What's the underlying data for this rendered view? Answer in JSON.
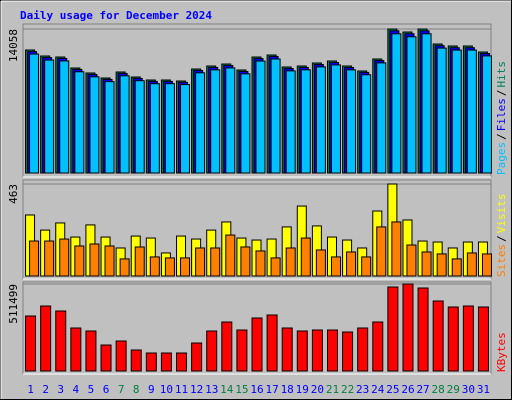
{
  "title": "Daily usage for December 2024",
  "legend_separator": "/",
  "chart_data": [
    {
      "type": "bar",
      "ylim": [
        0,
        14058
      ],
      "yticks": [
        14058
      ],
      "series": [
        {
          "name": "Hits",
          "color": "#00805c",
          "values": [
            12008,
            11422,
            11324,
            10250,
            9763,
            9274,
            9860,
            9372,
            9079,
            9079,
            8981,
            10153,
            10446,
            10641,
            10055,
            11324,
            11520,
            10348,
            10446,
            10739,
            10934,
            10446,
            9958,
            11129,
            14058,
            13765,
            14058,
            12594,
            12398,
            12398,
            11812
          ]
        },
        {
          "name": "Files",
          "color": "#0000ff",
          "values": [
            11850,
            11270,
            11180,
            10110,
            9620,
            9140,
            9720,
            9230,
            8940,
            8940,
            8850,
            10010,
            10300,
            10490,
            9910,
            11170,
            11370,
            10200,
            10300,
            10590,
            10780,
            10300,
            9820,
            10980,
            13880,
            13590,
            13880,
            12430,
            12230,
            12230,
            11660
          ]
        },
        {
          "name": "Pages",
          "color": "#00c0ff",
          "values": [
            11610,
            11030,
            10940,
            9880,
            9390,
            8920,
            9490,
            9010,
            8720,
            8720,
            8630,
            9780,
            10070,
            10260,
            9680,
            10930,
            11130,
            9970,
            10070,
            10360,
            10550,
            10070,
            9590,
            10750,
            13590,
            13300,
            13590,
            12190,
            12000,
            12000,
            11430
          ]
        }
      ]
    },
    {
      "type": "bar",
      "ylim": [
        0,
        463
      ],
      "yticks": [
        463
      ],
      "series": [
        {
          "name": "Visits",
          "color": "#ffff00",
          "values": [
            307,
            231,
            267,
            196,
            257,
            196,
            141,
            201,
            191,
            116,
            201,
            186,
            231,
            272,
            191,
            181,
            186,
            247,
            352,
            252,
            196,
            181,
            141,
            327,
            463,
            282,
            176,
            171,
            141,
            171,
            171
          ]
        },
        {
          "name": "Sites",
          "color": "#ff8000",
          "values": [
            176,
            176,
            186,
            151,
            161,
            151,
            86,
            146,
            96,
            91,
            91,
            141,
            141,
            206,
            146,
            126,
            91,
            141,
            191,
            131,
            96,
            121,
            96,
            247,
            272,
            156,
            121,
            111,
            86,
            116,
            111
          ]
        }
      ]
    },
    {
      "type": "bar",
      "ylim": [
        0,
        511499
      ],
      "yticks": [
        511499
      ],
      "categories": [
        "1",
        "2",
        "3",
        "4",
        "5",
        "6",
        "7",
        "8",
        "9",
        "10",
        "11",
        "12",
        "13",
        "14",
        "15",
        "16",
        "17",
        "18",
        "19",
        "20",
        "21",
        "22",
        "23",
        "24",
        "25",
        "26",
        "27",
        "28",
        "29",
        "30",
        "31"
      ],
      "category_colors": [
        "#0000ff",
        "#0000ff",
        "#0000ff",
        "#0000ff",
        "#0000ff",
        "#0000ff",
        "#008040",
        "#008040",
        "#0000ff",
        "#0000ff",
        "#0000ff",
        "#0000ff",
        "#0000ff",
        "#008040",
        "#008040",
        "#0000ff",
        "#0000ff",
        "#0000ff",
        "#0000ff",
        "#0000ff",
        "#008040",
        "#008040",
        "#0000ff",
        "#0000ff",
        "#0000ff",
        "#0000ff",
        "#0000ff",
        "#008040",
        "#008040",
        "#0000ff",
        "#0000ff"
      ],
      "series": [
        {
          "name": "KBytes",
          "color": "#ff0000",
          "values": [
            323355,
            382151,
            352756,
            252807,
            235173,
            152862,
            176379,
            123465,
            105830,
            105830,
            105830,
            164620,
            235173,
            288087,
            241051,
            311601,
            329240,
            252807,
            235173,
            241051,
            241051,
            229293,
            252807,
            288087,
            493860,
            511499,
            487985,
            411551,
            376271,
            382151,
            376271
          ]
        }
      ]
    }
  ]
}
